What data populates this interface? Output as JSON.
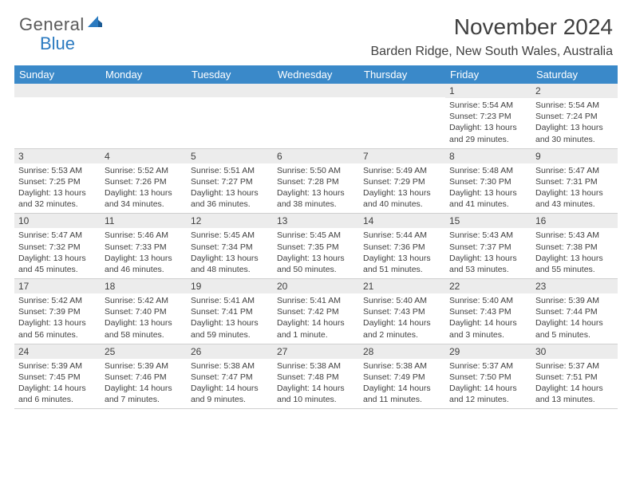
{
  "logo": {
    "textGray": "General",
    "textBlue": "Blue"
  },
  "title": "November 2024",
  "location": "Barden Ridge, New South Wales, Australia",
  "colors": {
    "headerBlue": "#3a89c9",
    "dayBg": "#ececec",
    "text": "#404040",
    "logoBlue": "#2b7ac0",
    "logoGray": "#5a5a5a"
  },
  "weekdays": [
    "Sunday",
    "Monday",
    "Tuesday",
    "Wednesday",
    "Thursday",
    "Friday",
    "Saturday"
  ],
  "weeks": [
    [
      null,
      null,
      null,
      null,
      null,
      {
        "n": "1",
        "sr": "5:54 AM",
        "ss": "7:23 PM",
        "dl": "13 hours and 29 minutes."
      },
      {
        "n": "2",
        "sr": "5:54 AM",
        "ss": "7:24 PM",
        "dl": "13 hours and 30 minutes."
      }
    ],
    [
      {
        "n": "3",
        "sr": "5:53 AM",
        "ss": "7:25 PM",
        "dl": "13 hours and 32 minutes."
      },
      {
        "n": "4",
        "sr": "5:52 AM",
        "ss": "7:26 PM",
        "dl": "13 hours and 34 minutes."
      },
      {
        "n": "5",
        "sr": "5:51 AM",
        "ss": "7:27 PM",
        "dl": "13 hours and 36 minutes."
      },
      {
        "n": "6",
        "sr": "5:50 AM",
        "ss": "7:28 PM",
        "dl": "13 hours and 38 minutes."
      },
      {
        "n": "7",
        "sr": "5:49 AM",
        "ss": "7:29 PM",
        "dl": "13 hours and 40 minutes."
      },
      {
        "n": "8",
        "sr": "5:48 AM",
        "ss": "7:30 PM",
        "dl": "13 hours and 41 minutes."
      },
      {
        "n": "9",
        "sr": "5:47 AM",
        "ss": "7:31 PM",
        "dl": "13 hours and 43 minutes."
      }
    ],
    [
      {
        "n": "10",
        "sr": "5:47 AM",
        "ss": "7:32 PM",
        "dl": "13 hours and 45 minutes."
      },
      {
        "n": "11",
        "sr": "5:46 AM",
        "ss": "7:33 PM",
        "dl": "13 hours and 46 minutes."
      },
      {
        "n": "12",
        "sr": "5:45 AM",
        "ss": "7:34 PM",
        "dl": "13 hours and 48 minutes."
      },
      {
        "n": "13",
        "sr": "5:45 AM",
        "ss": "7:35 PM",
        "dl": "13 hours and 50 minutes."
      },
      {
        "n": "14",
        "sr": "5:44 AM",
        "ss": "7:36 PM",
        "dl": "13 hours and 51 minutes."
      },
      {
        "n": "15",
        "sr": "5:43 AM",
        "ss": "7:37 PM",
        "dl": "13 hours and 53 minutes."
      },
      {
        "n": "16",
        "sr": "5:43 AM",
        "ss": "7:38 PM",
        "dl": "13 hours and 55 minutes."
      }
    ],
    [
      {
        "n": "17",
        "sr": "5:42 AM",
        "ss": "7:39 PM",
        "dl": "13 hours and 56 minutes."
      },
      {
        "n": "18",
        "sr": "5:42 AM",
        "ss": "7:40 PM",
        "dl": "13 hours and 58 minutes."
      },
      {
        "n": "19",
        "sr": "5:41 AM",
        "ss": "7:41 PM",
        "dl": "13 hours and 59 minutes."
      },
      {
        "n": "20",
        "sr": "5:41 AM",
        "ss": "7:42 PM",
        "dl": "14 hours and 1 minute."
      },
      {
        "n": "21",
        "sr": "5:40 AM",
        "ss": "7:43 PM",
        "dl": "14 hours and 2 minutes."
      },
      {
        "n": "22",
        "sr": "5:40 AM",
        "ss": "7:43 PM",
        "dl": "14 hours and 3 minutes."
      },
      {
        "n": "23",
        "sr": "5:39 AM",
        "ss": "7:44 PM",
        "dl": "14 hours and 5 minutes."
      }
    ],
    [
      {
        "n": "24",
        "sr": "5:39 AM",
        "ss": "7:45 PM",
        "dl": "14 hours and 6 minutes."
      },
      {
        "n": "25",
        "sr": "5:39 AM",
        "ss": "7:46 PM",
        "dl": "14 hours and 7 minutes."
      },
      {
        "n": "26",
        "sr": "5:38 AM",
        "ss": "7:47 PM",
        "dl": "14 hours and 9 minutes."
      },
      {
        "n": "27",
        "sr": "5:38 AM",
        "ss": "7:48 PM",
        "dl": "14 hours and 10 minutes."
      },
      {
        "n": "28",
        "sr": "5:38 AM",
        "ss": "7:49 PM",
        "dl": "14 hours and 11 minutes."
      },
      {
        "n": "29",
        "sr": "5:37 AM",
        "ss": "7:50 PM",
        "dl": "14 hours and 12 minutes."
      },
      {
        "n": "30",
        "sr": "5:37 AM",
        "ss": "7:51 PM",
        "dl": "14 hours and 13 minutes."
      }
    ]
  ],
  "labels": {
    "sunrise": "Sunrise: ",
    "sunset": "Sunset: ",
    "daylight": "Daylight: "
  }
}
